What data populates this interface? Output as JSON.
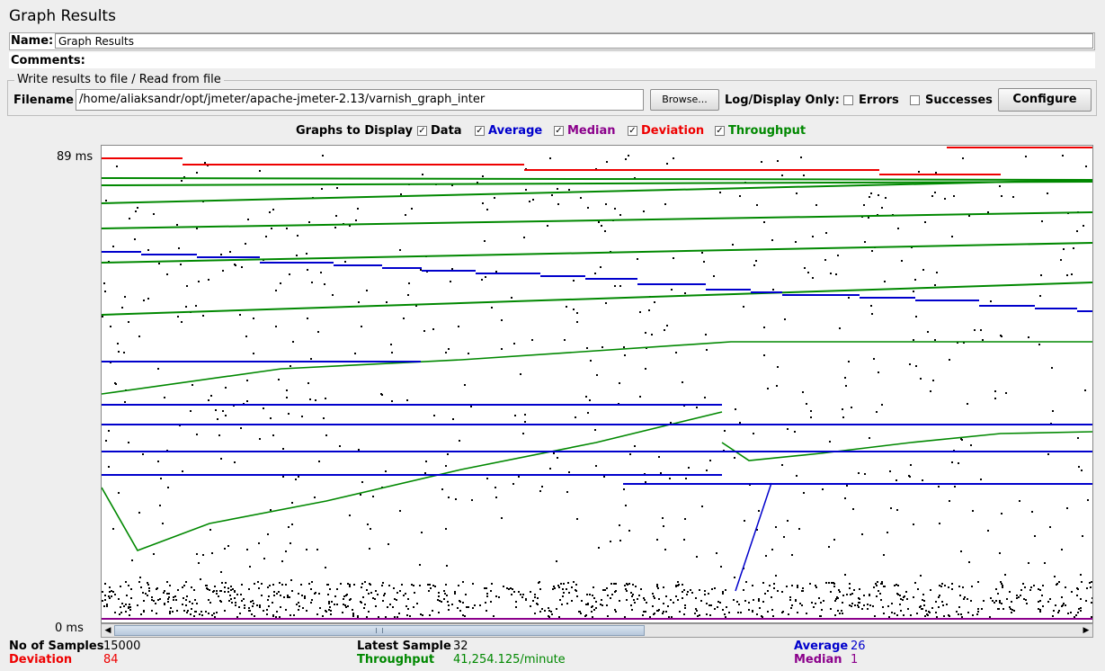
{
  "window_title": "Graph Results",
  "name": {
    "label": "Name:",
    "value": "Graph Results"
  },
  "comments": {
    "label": "Comments:",
    "value": ""
  },
  "file_group": {
    "legend": "Write results to file / Read from file",
    "filename_label": "Filename",
    "filename_value": "/home/aliaksandr/opt/jmeter/apache-jmeter-2.13/varnish_graph_inter",
    "browse_label": "Browse...",
    "log_display_label": "Log/Display Only:",
    "errors_label": "Errors",
    "successes_label": "Successes",
    "configure_label": "Configure"
  },
  "graphs": {
    "label": "Graphs to Display",
    "data_label": "Data",
    "average_label": "Average",
    "median_label": "Median",
    "deviation_label": "Deviation",
    "throughput_label": "Throughput"
  },
  "axis": {
    "top_label": "89 ms",
    "bottom_label": "0 ms"
  },
  "stats": {
    "samples_label": "No of Samples",
    "samples_value": "15000",
    "deviation_label": "Deviation",
    "deviation_value": "84",
    "latest_label": "Latest Sample",
    "latest_value": "32",
    "throughput_label": "Throughput",
    "throughput_value": "41,254.125/minute",
    "average_label": "Average",
    "average_value": "26",
    "median_label": "Median",
    "median_value": "1"
  },
  "colors": {
    "average": "#0000cc",
    "median": "#8b008b",
    "deviation": "#ee0000",
    "throughput": "#008800",
    "data": "#000000"
  },
  "chart_data": {
    "type": "scatter",
    "title": "",
    "ylim": [
      0,
      89
    ],
    "y_unit": "ms",
    "samples": 15000,
    "series": [
      {
        "name": "Data",
        "note": "scattered sample points, mostly 0–10 ms with outliers up to 89 ms"
      },
      {
        "name": "Average",
        "final_value": 26
      },
      {
        "name": "Median",
        "final_value": 1
      },
      {
        "name": "Deviation",
        "final_value": 84
      },
      {
        "name": "Throughput",
        "final_value": "41,254.125/minute"
      }
    ]
  }
}
